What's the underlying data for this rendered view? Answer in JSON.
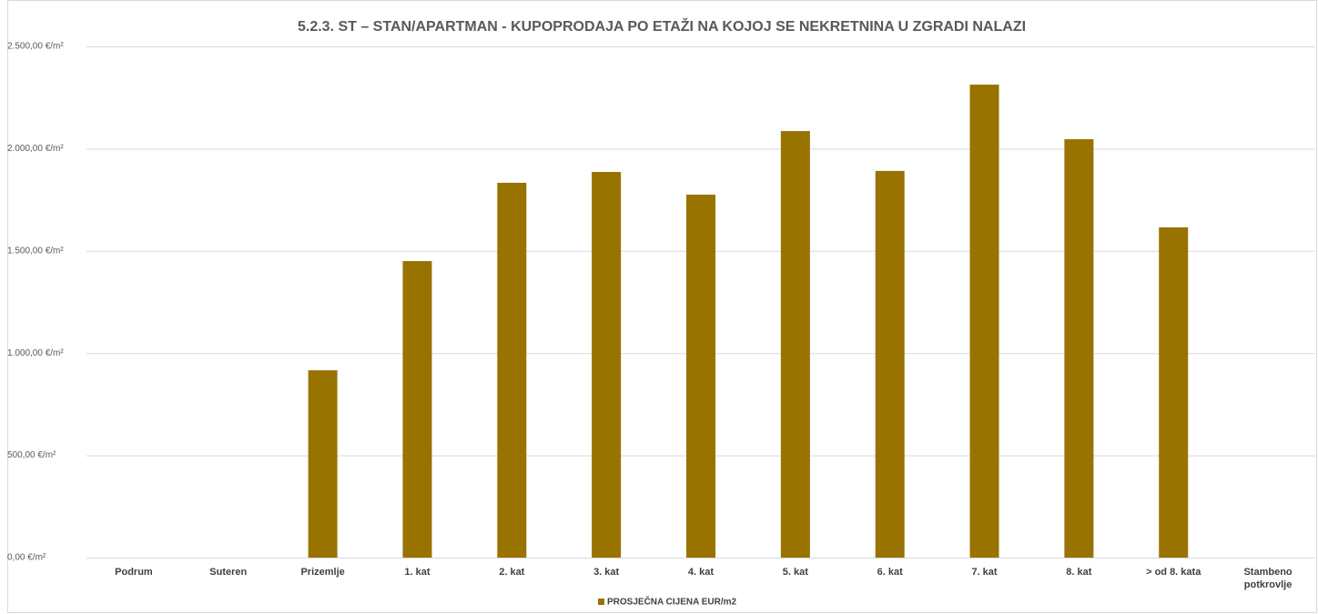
{
  "chart_data": {
    "type": "bar",
    "title": "5.2.3. ST – STAN/APARTMAN - KUPOPRODAJA PO ETAŽI NA KOJOJ SE NEKRETNINA U ZGRADI NALAZI",
    "categories": [
      "Podrum",
      "Suteren",
      "Prizemlje",
      "1. kat",
      "2. kat",
      "3. kat",
      "4. kat",
      "5. kat",
      "6. kat",
      "7. kat",
      "8. kat",
      "> od 8. kata",
      "Stambeno potkrovlje"
    ],
    "series": [
      {
        "name": "PROSJEČNA CIJENA EUR/m2",
        "color": "#997300",
        "values": [
          null,
          null,
          916,
          1450,
          1833,
          1886,
          1775,
          2086,
          1891,
          2313,
          2046,
          1615,
          null
        ]
      }
    ],
    "ylim": [
      0,
      2500
    ],
    "yticks": [
      {
        "value": 0,
        "label": "0,00 €/m²"
      },
      {
        "value": 500,
        "label": "500,00 €/m²"
      },
      {
        "value": 1000,
        "label": "1.000,00 €/m²"
      },
      {
        "value": 1500,
        "label": "1.500,00 €/m²"
      },
      {
        "value": 2000,
        "label": "2.000,00 €/m²"
      },
      {
        "value": 2500,
        "label": "2.500,00 €/m²"
      }
    ],
    "grid": true,
    "legend": "bottom"
  }
}
